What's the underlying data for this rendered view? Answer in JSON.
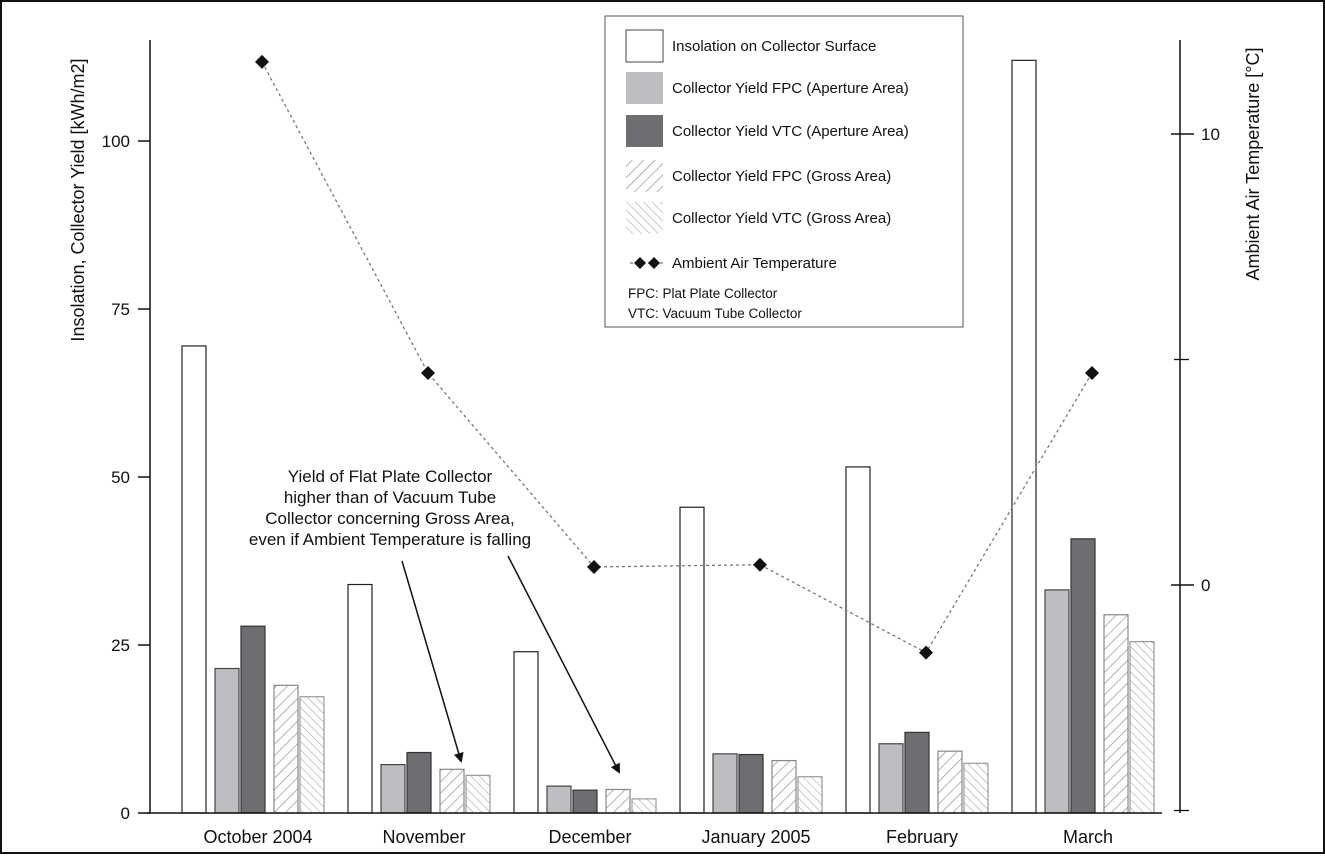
{
  "chart_data": {
    "type": "bar",
    "categories": [
      "October 2004",
      "November",
      "December",
      "January 2005",
      "February",
      "March"
    ],
    "ylabel": "Insolation, Collector Yield  [kWh/m2]",
    "y2label": "Ambient Air Temperature  [°C]",
    "ylim": [
      0,
      112
    ],
    "yticks": [
      "0",
      "25",
      "50",
      "75",
      "100"
    ],
    "y2lim": [
      -5,
      12
    ],
    "y2ticks": [
      "0",
      "10"
    ],
    "y2minor": [
      -5,
      5
    ],
    "series": [
      {
        "name": "Insolation on Collector Surface",
        "kind": "bar",
        "pattern": "white",
        "values": [
          69.5,
          34,
          24,
          45.5,
          51.5,
          112
        ]
      },
      {
        "name": "Collector Yield FPC (Aperture Area)",
        "kind": "bar",
        "pattern": "lightgray",
        "values": [
          21.5,
          7.2,
          4,
          8.8,
          10.3,
          33.2
        ]
      },
      {
        "name": "Collector Yield VTC (Aperture Area)",
        "kind": "bar",
        "pattern": "darkgray",
        "values": [
          27.8,
          9,
          3.4,
          8.7,
          12,
          40.8
        ]
      },
      {
        "name": "Collector Yield FPC (Gross Area)",
        "kind": "bar",
        "pattern": "hatch-forward",
        "values": [
          19,
          6.5,
          3.5,
          7.8,
          9.2,
          29.5
        ]
      },
      {
        "name": "Collector Yield VTC (Gross Area)",
        "kind": "bar",
        "pattern": "hatch-back",
        "values": [
          17.3,
          5.6,
          2.1,
          5.4,
          7.4,
          25.5
        ]
      },
      {
        "name": "Ambient Air Temperature",
        "kind": "line",
        "axis": "right",
        "values": [
          11.6,
          4.7,
          0.4,
          0.45,
          -1.5,
          4.7
        ]
      }
    ],
    "legend_position": "top-center",
    "legend_notes": [
      "FPC: Plat Plate Collector",
      "VTC: Vacuum Tube Collector"
    ],
    "annotation": {
      "lines": [
        "Yield of Flat Plate Collector",
        "higher than of Vacuum Tube",
        "Collector concerning Gross Area,",
        "even if Ambient Temperature is falling"
      ],
      "points_to": [
        "November",
        "December"
      ]
    }
  }
}
